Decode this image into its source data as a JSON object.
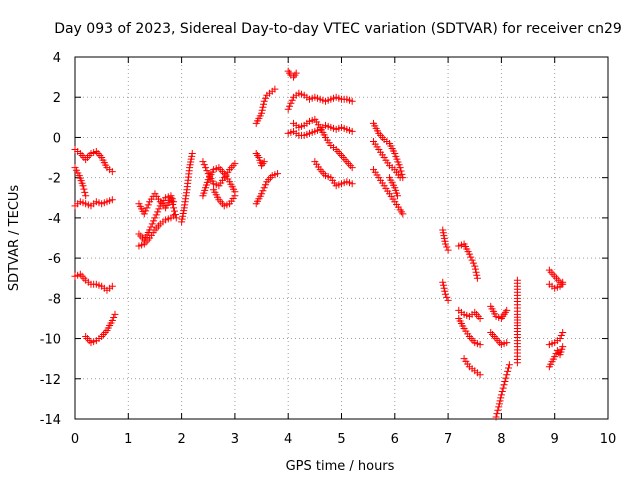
{
  "chart_data": {
    "type": "scatter",
    "title": "Day 093 of 2023, Sidereal Day-to-day VTEC variation (SDTVAR) for receiver cn29",
    "xlabel": "GPS time / hours",
    "ylabel": "SDTVAR / TECUs",
    "xlim": [
      0,
      10
    ],
    "ylim": [
      -14,
      4
    ],
    "xticks": [
      "0",
      "1",
      "2",
      "3",
      "4",
      "5",
      "6",
      "7",
      "8",
      "9",
      "10"
    ],
    "yticks": [
      "4",
      "2",
      "0",
      "-2",
      "-4",
      "-6",
      "-8",
      "-10",
      "-12",
      "-14"
    ],
    "grid": true,
    "marker": "+",
    "color": "#ff0000",
    "series": [
      {
        "points": [
          [
            0.0,
            -0.6
          ],
          [
            0.1,
            -0.8
          ],
          [
            0.2,
            -1.1
          ],
          [
            0.3,
            -0.8
          ],
          [
            0.4,
            -0.7
          ],
          [
            0.5,
            -1.0
          ],
          [
            0.6,
            -1.5
          ],
          [
            0.7,
            -1.7
          ]
        ]
      },
      {
        "points": [
          [
            0.0,
            -1.5
          ],
          [
            0.08,
            -1.9
          ],
          [
            0.15,
            -2.4
          ],
          [
            0.2,
            -2.9
          ]
        ]
      },
      {
        "points": [
          [
            0.0,
            -3.4
          ],
          [
            0.1,
            -3.2
          ],
          [
            0.2,
            -3.3
          ],
          [
            0.3,
            -3.4
          ],
          [
            0.4,
            -3.2
          ],
          [
            0.5,
            -3.3
          ],
          [
            0.6,
            -3.2
          ],
          [
            0.7,
            -3.1
          ]
        ]
      },
      {
        "points": [
          [
            0.0,
            -6.9
          ],
          [
            0.1,
            -6.8
          ],
          [
            0.2,
            -7.1
          ],
          [
            0.3,
            -7.3
          ],
          [
            0.4,
            -7.3
          ],
          [
            0.5,
            -7.4
          ],
          [
            0.6,
            -7.6
          ],
          [
            0.7,
            -7.4
          ]
        ]
      },
      {
        "points": [
          [
            0.2,
            -9.9
          ],
          [
            0.3,
            -10.2
          ],
          [
            0.4,
            -10.1
          ],
          [
            0.5,
            -9.9
          ],
          [
            0.6,
            -9.6
          ],
          [
            0.7,
            -9.1
          ],
          [
            0.75,
            -8.8
          ]
        ]
      },
      {
        "points": [
          [
            1.2,
            -3.3
          ],
          [
            1.3,
            -3.8
          ],
          [
            1.4,
            -3.2
          ],
          [
            1.5,
            -2.8
          ],
          [
            1.6,
            -3.2
          ],
          [
            1.7,
            -3.5
          ],
          [
            1.8,
            -3.0
          ],
          [
            1.85,
            -3.5
          ],
          [
            1.9,
            -4.0
          ]
        ]
      },
      {
        "points": [
          [
            1.2,
            -4.8
          ],
          [
            1.3,
            -5.1
          ],
          [
            1.4,
            -4.6
          ],
          [
            1.5,
            -4.0
          ],
          [
            1.6,
            -3.4
          ],
          [
            1.7,
            -3.0
          ],
          [
            1.8,
            -2.9
          ],
          [
            1.85,
            -3.2
          ]
        ]
      },
      {
        "points": [
          [
            1.2,
            -5.4
          ],
          [
            1.3,
            -5.3
          ],
          [
            1.4,
            -5.0
          ],
          [
            1.5,
            -4.6
          ],
          [
            1.6,
            -4.3
          ],
          [
            1.7,
            -4.1
          ],
          [
            1.8,
            -4.0
          ],
          [
            1.85,
            -3.9
          ]
        ]
      },
      {
        "points": [
          [
            2.0,
            -4.2
          ],
          [
            2.05,
            -3.5
          ],
          [
            2.1,
            -2.6
          ],
          [
            2.15,
            -1.5
          ],
          [
            2.2,
            -0.8
          ]
        ]
      },
      {
        "points": [
          [
            2.4,
            -2.9
          ],
          [
            2.5,
            -2.1
          ],
          [
            2.6,
            -1.6
          ],
          [
            2.7,
            -1.5
          ],
          [
            2.8,
            -1.8
          ],
          [
            2.9,
            -2.2
          ],
          [
            3.0,
            -2.7
          ]
        ]
      },
      {
        "points": [
          [
            2.4,
            -1.2
          ],
          [
            2.5,
            -1.8
          ],
          [
            2.6,
            -2.3
          ],
          [
            2.7,
            -2.4
          ],
          [
            2.8,
            -2.0
          ],
          [
            2.9,
            -1.6
          ],
          [
            3.0,
            -1.3
          ]
        ]
      },
      {
        "points": [
          [
            2.6,
            -2.6
          ],
          [
            2.7,
            -3.1
          ],
          [
            2.8,
            -3.4
          ],
          [
            2.9,
            -3.3
          ],
          [
            3.0,
            -2.9
          ]
        ]
      },
      {
        "points": [
          [
            3.4,
            -3.3
          ],
          [
            3.5,
            -2.8
          ],
          [
            3.6,
            -2.2
          ],
          [
            3.7,
            -1.9
          ],
          [
            3.8,
            -1.8
          ]
        ]
      },
      {
        "points": [
          [
            3.4,
            -0.8
          ],
          [
            3.45,
            -1.0
          ],
          [
            3.5,
            -1.4
          ],
          [
            3.55,
            -1.2
          ]
        ]
      },
      {
        "points": [
          [
            3.4,
            0.7
          ],
          [
            3.5,
            1.2
          ],
          [
            3.55,
            1.8
          ],
          [
            3.6,
            2.1
          ],
          [
            3.7,
            2.3
          ],
          [
            3.75,
            2.4
          ]
        ]
      },
      {
        "points": [
          [
            4.0,
            3.3
          ],
          [
            4.05,
            3.1
          ],
          [
            4.1,
            3.0
          ],
          [
            4.15,
            3.2
          ]
        ]
      },
      {
        "points": [
          [
            4.0,
            1.4
          ],
          [
            4.1,
            2.0
          ],
          [
            4.2,
            2.2
          ],
          [
            4.3,
            2.1
          ],
          [
            4.4,
            1.9
          ],
          [
            4.5,
            2.0
          ],
          [
            4.6,
            1.9
          ],
          [
            4.7,
            1.8
          ],
          [
            4.8,
            1.9
          ],
          [
            4.9,
            2.0
          ],
          [
            5.0,
            1.9
          ],
          [
            5.1,
            1.9
          ],
          [
            5.2,
            1.8
          ]
        ]
      },
      {
        "points": [
          [
            4.0,
            0.2
          ],
          [
            4.1,
            0.3
          ],
          [
            4.2,
            0.1
          ],
          [
            4.3,
            0.1
          ],
          [
            4.4,
            0.2
          ],
          [
            4.5,
            0.3
          ],
          [
            4.6,
            0.4
          ],
          [
            4.7,
            0.6
          ],
          [
            4.8,
            0.5
          ],
          [
            4.9,
            0.4
          ],
          [
            5.0,
            0.5
          ],
          [
            5.1,
            0.4
          ],
          [
            5.2,
            0.3
          ]
        ]
      },
      {
        "points": [
          [
            4.1,
            0.7
          ],
          [
            4.2,
            0.5
          ],
          [
            4.3,
            0.6
          ],
          [
            4.4,
            0.8
          ],
          [
            4.5,
            0.9
          ],
          [
            4.6,
            0.5
          ],
          [
            4.7,
            0.0
          ],
          [
            4.8,
            -0.4
          ],
          [
            4.9,
            -0.6
          ],
          [
            5.0,
            -0.9
          ],
          [
            5.1,
            -1.2
          ],
          [
            5.2,
            -1.5
          ]
        ]
      },
      {
        "points": [
          [
            4.5,
            -1.2
          ],
          [
            4.6,
            -1.6
          ],
          [
            4.7,
            -1.9
          ],
          [
            4.8,
            -2.0
          ],
          [
            4.9,
            -2.4
          ],
          [
            5.0,
            -2.3
          ],
          [
            5.1,
            -2.2
          ],
          [
            5.2,
            -2.3
          ]
        ]
      },
      {
        "points": [
          [
            5.6,
            0.7
          ],
          [
            5.7,
            0.2
          ],
          [
            5.8,
            -0.1
          ],
          [
            5.9,
            -0.3
          ],
          [
            6.0,
            -0.8
          ],
          [
            6.1,
            -1.5
          ],
          [
            6.15,
            -2.0
          ]
        ]
      },
      {
        "points": [
          [
            5.6,
            -0.2
          ],
          [
            5.7,
            -0.6
          ],
          [
            5.8,
            -1.0
          ],
          [
            5.9,
            -1.4
          ],
          [
            6.0,
            -1.6
          ],
          [
            6.1,
            -2.0
          ]
        ]
      },
      {
        "points": [
          [
            5.6,
            -1.6
          ],
          [
            5.7,
            -2.0
          ],
          [
            5.8,
            -2.4
          ],
          [
            5.9,
            -2.8
          ],
          [
            6.0,
            -3.2
          ],
          [
            6.1,
            -3.6
          ],
          [
            6.15,
            -3.8
          ]
        ]
      },
      {
        "points": [
          [
            5.9,
            -2.0
          ],
          [
            6.0,
            -2.5
          ],
          [
            6.05,
            -2.9
          ]
        ]
      },
      {
        "points": [
          [
            6.9,
            -4.6
          ],
          [
            6.95,
            -5.3
          ],
          [
            7.0,
            -5.6
          ]
        ]
      },
      {
        "points": [
          [
            6.9,
            -7.2
          ],
          [
            6.95,
            -7.8
          ],
          [
            7.0,
            -8.1
          ]
        ]
      },
      {
        "points": [
          [
            7.2,
            -5.4
          ],
          [
            7.3,
            -5.3
          ],
          [
            7.4,
            -5.8
          ],
          [
            7.5,
            -6.4
          ],
          [
            7.55,
            -7.0
          ]
        ]
      },
      {
        "points": [
          [
            7.2,
            -8.6
          ],
          [
            7.3,
            -8.8
          ],
          [
            7.4,
            -8.9
          ],
          [
            7.5,
            -8.7
          ],
          [
            7.6,
            -9.0
          ]
        ]
      },
      {
        "points": [
          [
            7.2,
            -9.0
          ],
          [
            7.3,
            -9.5
          ],
          [
            7.4,
            -9.9
          ],
          [
            7.5,
            -10.2
          ],
          [
            7.6,
            -10.3
          ]
        ]
      },
      {
        "points": [
          [
            7.3,
            -11.0
          ],
          [
            7.4,
            -11.4
          ],
          [
            7.5,
            -11.6
          ],
          [
            7.6,
            -11.8
          ]
        ]
      },
      {
        "points": [
          [
            7.8,
            -8.4
          ],
          [
            7.9,
            -8.9
          ],
          [
            8.0,
            -9.0
          ],
          [
            8.05,
            -8.8
          ],
          [
            8.1,
            -8.6
          ]
        ]
      },
      {
        "points": [
          [
            7.8,
            -9.7
          ],
          [
            7.9,
            -10.0
          ],
          [
            8.0,
            -10.3
          ],
          [
            8.1,
            -10.2
          ]
        ]
      },
      {
        "points": [
          [
            7.9,
            -13.9
          ],
          [
            7.95,
            -13.4
          ],
          [
            8.0,
            -12.8
          ],
          [
            8.05,
            -12.3
          ],
          [
            8.1,
            -11.8
          ],
          [
            8.15,
            -11.3
          ]
        ]
      },
      {
        "points": [
          [
            8.3,
            -7.1
          ],
          [
            8.3,
            -8.0
          ],
          [
            8.3,
            -8.8
          ],
          [
            8.3,
            -9.5
          ],
          [
            8.3,
            -10.4
          ],
          [
            8.3,
            -11.2
          ]
        ]
      },
      {
        "points": [
          [
            8.9,
            -6.6
          ],
          [
            9.0,
            -6.9
          ],
          [
            9.1,
            -7.2
          ],
          [
            9.15,
            -7.3
          ]
        ]
      },
      {
        "points": [
          [
            8.9,
            -7.3
          ],
          [
            9.0,
            -7.5
          ],
          [
            9.1,
            -7.4
          ],
          [
            9.15,
            -7.2
          ]
        ]
      },
      {
        "points": [
          [
            8.9,
            -10.3
          ],
          [
            9.0,
            -10.2
          ],
          [
            9.1,
            -10.0
          ],
          [
            9.15,
            -9.7
          ]
        ]
      },
      {
        "points": [
          [
            8.9,
            -11.4
          ],
          [
            9.0,
            -10.9
          ],
          [
            9.05,
            -10.6
          ],
          [
            9.1,
            -10.8
          ],
          [
            9.15,
            -10.4
          ]
        ]
      }
    ]
  }
}
